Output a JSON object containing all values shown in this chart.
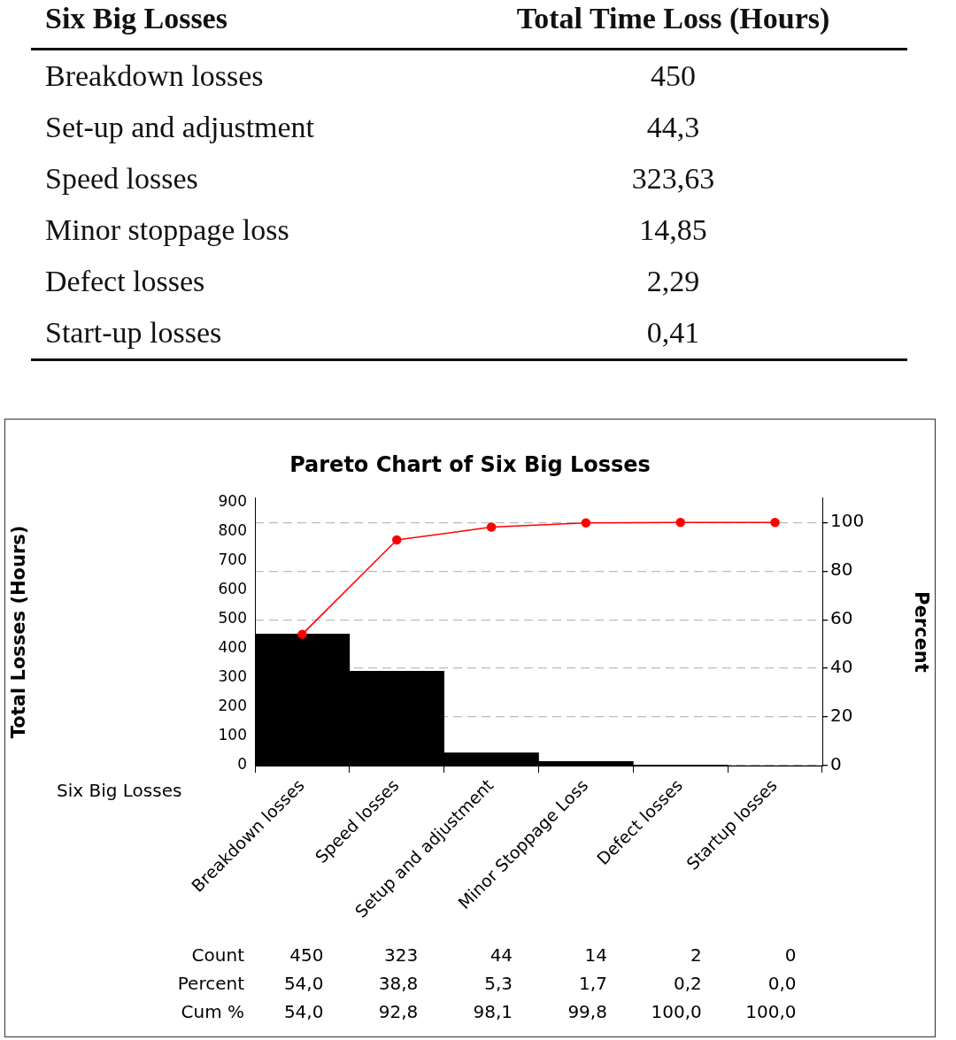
{
  "chart_data": [
    {
      "type": "other",
      "annotations": [
        "Six Big Losses",
        "Total Time Loss (Hours)"
      ],
      "categories": [
        "Breakdown losses",
        "Set-up and adjustment",
        "Speed losses",
        "Minor stoppage loss",
        "Defect losses",
        "Start-up losses"
      ],
      "value_labels": [
        "450",
        "44,3",
        "323,63",
        "14,85",
        "2,29",
        "0,41"
      ]
    },
    {
      "type": "bar",
      "title": "Pareto Chart of Six Big Losses",
      "xlabel": "Six Big Losses",
      "ylabel": "Total Losses (Hours)",
      "y2label": "Percent",
      "categories": [
        "Breakdown losses",
        "Speed losses",
        "Setup and adjustment",
        "Minor Stoppage Loss",
        "Defect losses",
        "Startup losses"
      ],
      "series": [
        {
          "type": "bar",
          "color": "#000000",
          "values": [
            450,
            323,
            44,
            14,
            2,
            0
          ],
          "value_labels": [
            "450",
            "323",
            "44",
            "14",
            "2",
            "0"
          ]
        },
        {
          "type": "line",
          "axis": "y2",
          "color": "#ff0000",
          "values": [
            54.0,
            92.8,
            98.1,
            99.8,
            100.0,
            100.0
          ],
          "value_labels": [
            "54,0",
            "92,8",
            "98,1",
            "99,8",
            "100,0",
            "100,0"
          ]
        }
      ],
      "annotations": [
        "Count",
        "Percent",
        "Cum %",
        "54,0",
        "38,8",
        "5,3",
        "1,7",
        "0,2",
        "0,0"
      ],
      "ylim": [
        0,
        915
      ],
      "yticks": [
        0,
        100,
        200,
        300,
        400,
        500,
        600,
        700,
        800,
        900
      ],
      "y2lim": [
        0,
        110
      ],
      "y2ticks": [
        0,
        20,
        40,
        60,
        80,
        100
      ],
      "grid": "y2",
      "legend": false,
      "marker": "circle"
    }
  ]
}
